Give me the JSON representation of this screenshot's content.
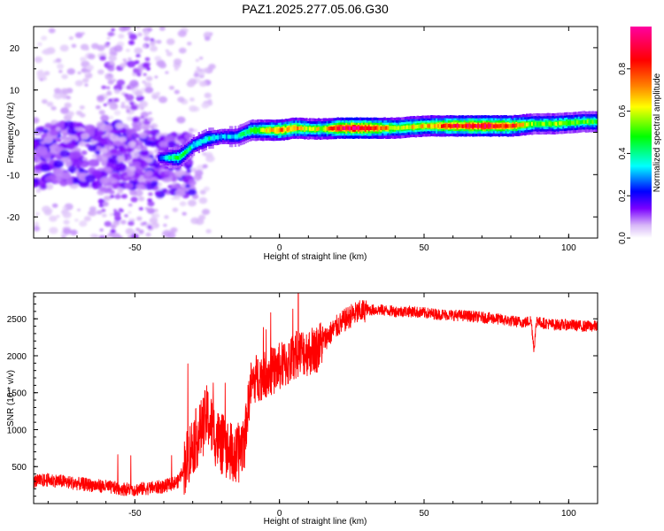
{
  "title": "PAZ1.2025.277.05.06.G30",
  "chart_data": [
    {
      "type": "heatmap",
      "xlabel": "Height of straight line (km)",
      "ylabel": "Frequency (Hz)",
      "xlim": [
        -85,
        110
      ],
      "ylim": [
        -25,
        25
      ],
      "xticks": [
        -50,
        0,
        50,
        100
      ],
      "yticks": [
        -20,
        -10,
        0,
        10,
        20
      ],
      "colorbar": {
        "label": "Normalized spectral amplitude",
        "range": [
          0,
          1
        ],
        "ticks": [
          0.0,
          0.2,
          0.4,
          0.6,
          0.8
        ],
        "tick_labels": [
          "0.0",
          "0.2",
          "0.4",
          "0.6",
          "0.8"
        ],
        "colormap": [
          "#ffffff",
          "#d8b8f8",
          "#7a00ff",
          "#0000ff",
          "#00ffff",
          "#00ff00",
          "#ffff00",
          "#ff8000",
          "#ff0000",
          "#ff00a0"
        ]
      },
      "ridge": [
        {
          "x": -40,
          "freq": -6.0,
          "amp": 0.3
        },
        {
          "x": -35,
          "freq": -6.0,
          "amp": 0.5
        },
        {
          "x": -30,
          "freq": -3.0,
          "amp": 0.35
        },
        {
          "x": -25,
          "freq": -1.5,
          "amp": 0.4
        },
        {
          "x": -20,
          "freq": -1.0,
          "amp": 0.3
        },
        {
          "x": -15,
          "freq": -1.0,
          "amp": 0.35
        },
        {
          "x": -10,
          "freq": 0.5,
          "amp": 0.5
        },
        {
          "x": -5,
          "freq": 0.5,
          "amp": 0.6
        },
        {
          "x": 0,
          "freq": 0.5,
          "amp": 0.75
        },
        {
          "x": 5,
          "freq": 1.0,
          "amp": 0.7
        },
        {
          "x": 10,
          "freq": 0.8,
          "amp": 0.6
        },
        {
          "x": 15,
          "freq": 0.8,
          "amp": 0.6
        },
        {
          "x": 20,
          "freq": 1.0,
          "amp": 0.85
        },
        {
          "x": 25,
          "freq": 1.0,
          "amp": 0.95
        },
        {
          "x": 30,
          "freq": 1.0,
          "amp": 0.9
        },
        {
          "x": 40,
          "freq": 1.0,
          "amp": 0.6
        },
        {
          "x": 50,
          "freq": 1.5,
          "amp": 0.65
        },
        {
          "x": 60,
          "freq": 1.5,
          "amp": 0.85
        },
        {
          "x": 70,
          "freq": 1.5,
          "amp": 0.9
        },
        {
          "x": 80,
          "freq": 1.5,
          "amp": 0.8
        },
        {
          "x": 88,
          "freq": 2.0,
          "amp": 0.5
        },
        {
          "x": 95,
          "freq": 2.0,
          "amp": 0.55
        },
        {
          "x": 105,
          "freq": 2.5,
          "amp": 0.5
        },
        {
          "x": 110,
          "freq": 2.5,
          "amp": 0.5
        }
      ]
    },
    {
      "type": "line",
      "xlabel": "Height of straight line (km)",
      "ylabel": "SNR (10 * v/v)",
      "xlim": [
        -85,
        110
      ],
      "ylim": [
        0,
        2850
      ],
      "xticks": [
        -50,
        0,
        50,
        100
      ],
      "yticks": [
        500,
        1000,
        1500,
        2000,
        2500
      ],
      "color": "#ff0000",
      "series": [
        {
          "name": "SNR",
          "x": [
            -85,
            -80,
            -75,
            -70,
            -65,
            -60,
            -55,
            -50,
            -45,
            -40,
            -35,
            -30,
            -27,
            -25,
            -22,
            -20,
            -17,
            -15,
            -12,
            -10,
            -8,
            -5,
            -2,
            0,
            3,
            5,
            8,
            10,
            13,
            15,
            20,
            25,
            30,
            35,
            40,
            45,
            50,
            55,
            60,
            65,
            70,
            75,
            80,
            85,
            87,
            88,
            89,
            90,
            95,
            100,
            105,
            110
          ],
          "y": [
            300,
            320,
            300,
            270,
            250,
            230,
            200,
            190,
            210,
            230,
            300,
            800,
            1000,
            1200,
            900,
            800,
            700,
            600,
            900,
            1600,
            1700,
            1750,
            1800,
            1850,
            1900,
            2000,
            2050,
            2050,
            2100,
            2200,
            2400,
            2550,
            2620,
            2620,
            2600,
            2600,
            2580,
            2560,
            2550,
            2540,
            2520,
            2500,
            2470,
            2450,
            2480,
            2100,
            2500,
            2450,
            2420,
            2420,
            2400,
            2400
          ]
        }
      ]
    }
  ]
}
